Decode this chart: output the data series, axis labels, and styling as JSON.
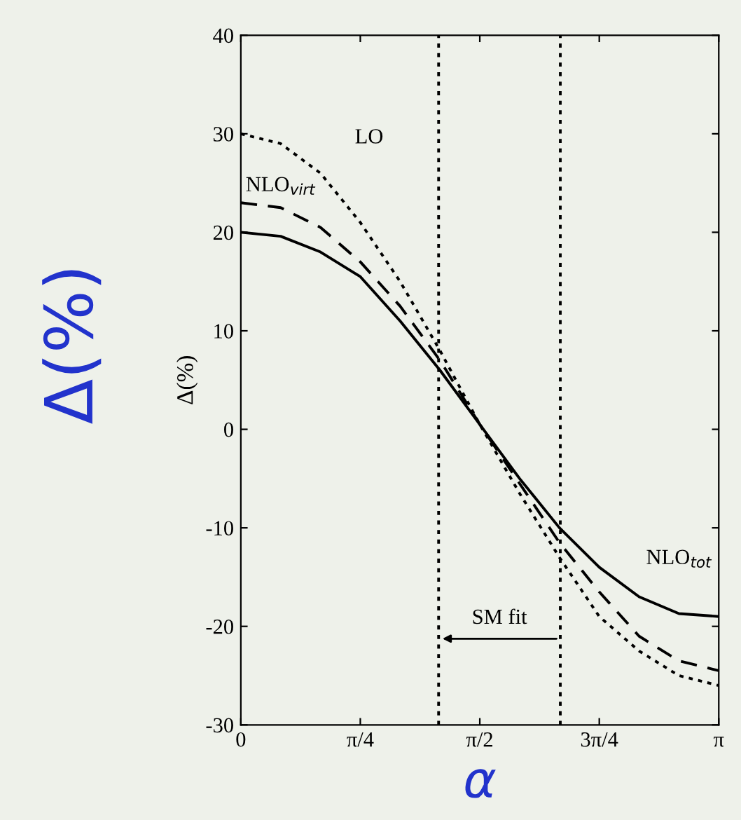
{
  "chart_data": {
    "type": "line",
    "ylabel": "Δ(%)",
    "xlabel": "α",
    "x": [
      0,
      0.2618,
      0.5236,
      0.7854,
      1.0472,
      1.309,
      1.5708,
      1.8326,
      2.0944,
      2.3562,
      2.618,
      2.8798,
      3.1416
    ],
    "series": [
      {
        "name": "LO",
        "color": "#000000",
        "line_style": "dotted",
        "values": [
          30,
          29,
          26,
          21,
          15,
          8,
          0.5,
          -6.5,
          -13,
          -19,
          -22.5,
          -25,
          -26
        ]
      },
      {
        "name": "NLO$_{virt}$",
        "color": "#000000",
        "line_style": "dashed",
        "values": [
          23,
          22.5,
          20.5,
          17,
          12.5,
          7,
          0.5,
          -5.5,
          -11.5,
          -16.5,
          -21,
          -23.5,
          -24.5
        ]
      },
      {
        "name": "NLO$_{tot}$",
        "color": "#000000",
        "line_style": "solid",
        "values": [
          20,
          19.6,
          18,
          15.5,
          11,
          6,
          0.5,
          -5,
          -10,
          -14,
          -17,
          -18.7,
          -19
        ]
      }
    ],
    "xlim": [
      0,
      3.1416
    ],
    "ylim": [
      -30,
      40
    ],
    "xticks": [
      0,
      {
        "value": 0.7854,
        "label": "π/4"
      },
      {
        "value": 1.5708,
        "label": "π/2"
      },
      {
        "value": 2.3562,
        "label": "3π/4"
      },
      {
        "value": 3.1416,
        "label": "π"
      }
    ],
    "yticks": [
      -30,
      -20,
      -10,
      0,
      10,
      20,
      30,
      40
    ],
    "ref_lines": [
      {
        "axis": "x",
        "value": 1.3,
        "line_style": "dotted",
        "color": "#000000"
      },
      {
        "axis": "x",
        "value": 2.1,
        "line_style": "dotted",
        "color": "#000000"
      }
    ],
    "annotations": [
      "SM fit",
      "Δ(%)"
    ],
    "grid": false
  }
}
